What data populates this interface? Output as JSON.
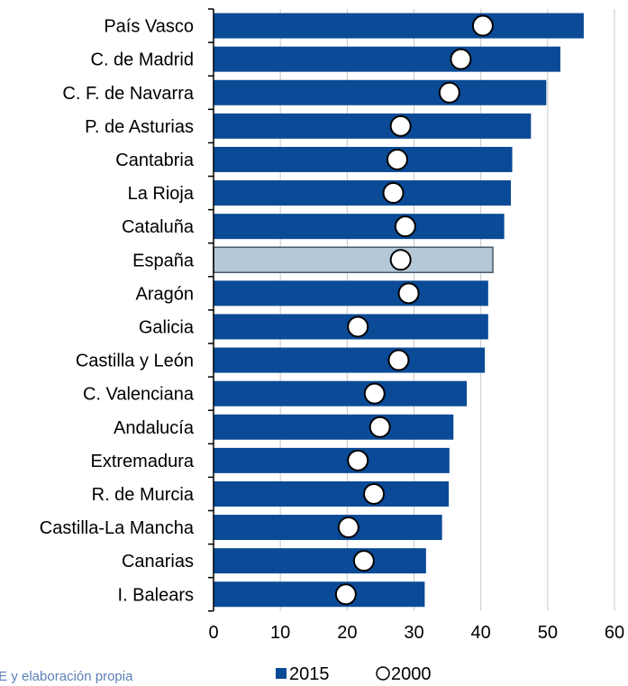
{
  "source_note": "IE y elaboración propia",
  "colors": {
    "bar": "#0a4a96",
    "highlight_bar": "#b4c8d8",
    "highlight_stroke": "#4a5a6a",
    "grid": "#c8c8c8",
    "marker_fill": "#ffffff",
    "marker_stroke": "#000000"
  },
  "chart_data": {
    "type": "bar",
    "orientation": "horizontal",
    "categories": [
      "País Vasco",
      "C. de Madrid",
      "C. F. de Navarra",
      "P. de Asturias",
      "Cantabria",
      "La Rioja",
      "Cataluña",
      "España",
      "Aragón",
      "Galicia",
      "Castilla y León",
      "C. Valenciana",
      "Andalucía",
      "Extremadura",
      "R. de Murcia",
      "Castilla-La Mancha",
      "Canarias",
      "I. Balears"
    ],
    "highlight_category": "España",
    "series": [
      {
        "name": "2015",
        "mark": "bar",
        "values": [
          55.4,
          51.9,
          49.8,
          47.5,
          44.7,
          44.5,
          43.5,
          41.8,
          41.1,
          41.1,
          40.6,
          37.9,
          35.9,
          35.3,
          35.2,
          34.2,
          31.8,
          31.6
        ]
      },
      {
        "name": "2000",
        "mark": "circle",
        "values": [
          40.3,
          37.0,
          35.3,
          28.0,
          27.5,
          26.9,
          28.7,
          28.0,
          29.2,
          21.6,
          27.7,
          24.1,
          24.9,
          21.6,
          24.0,
          20.2,
          22.5,
          19.8
        ]
      }
    ],
    "xlim": [
      0,
      60
    ],
    "xticks": [
      "0",
      "10",
      "20",
      "30",
      "40",
      "50",
      "60"
    ],
    "grid": "vertical",
    "legend_position": "bottom"
  }
}
